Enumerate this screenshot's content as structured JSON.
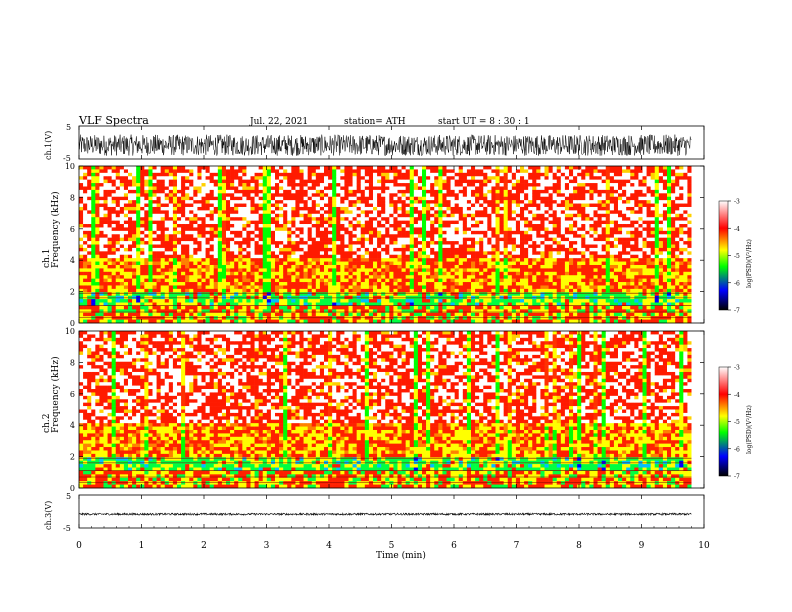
{
  "header": {
    "title": "VLF  Spectra",
    "date": "Jul.  22, 2021",
    "station": "station= ATH",
    "start": "start  UT  =    8  : 30 : 1"
  },
  "chart_data": [
    {
      "type": "line",
      "panel": "ch1-waveform",
      "ylabel": "ch.1(V)",
      "ylim": [
        -5,
        5
      ],
      "yticks": [
        "5",
        "-5"
      ],
      "xlim": [
        0,
        10
      ],
      "trace": {
        "mean": -0.8,
        "amplitude": 3.2,
        "color": "#000000"
      }
    },
    {
      "type": "heatmap",
      "panel": "ch1-spectrogram",
      "ylabel": "ch.1\nFrequency  (kHz)",
      "ylim": [
        0,
        10
      ],
      "yticks": [
        "0",
        "2",
        "4",
        "6",
        "8",
        "10"
      ],
      "xlim": [
        0,
        9.8
      ],
      "colorbar": {
        "label": "log(PSD)(V²/Hz)",
        "range": [
          -7,
          -3
        ],
        "ticks": [
          "-3",
          "-4",
          "-5",
          "-6",
          "-7"
        ]
      },
      "bands_khz": {
        "green_band": [
          1,
          2
        ],
        "yellow_band": [
          2,
          4.2
        ],
        "red_upper": [
          4.2,
          10
        ]
      }
    },
    {
      "type": "heatmap",
      "panel": "ch2-spectrogram",
      "ylabel": "ch.2\nFrequency  (kHz)",
      "ylim": [
        0,
        10
      ],
      "yticks": [
        "0",
        "2",
        "4",
        "6",
        "8",
        "10"
      ],
      "xlim": [
        0,
        9.8
      ],
      "colorbar": {
        "label": "log(PSD)(V²/Hz)",
        "range": [
          -7,
          -3
        ],
        "ticks": [
          "-3",
          "-4",
          "-5",
          "-6",
          "-7"
        ]
      },
      "bands_khz": {
        "green_band": [
          1,
          2
        ],
        "yellow_band": [
          2,
          4.2
        ],
        "red_upper": [
          4.2,
          10
        ]
      }
    },
    {
      "type": "line",
      "panel": "ch3-waveform",
      "ylabel": "ch.3(V)",
      "ylim": [
        -5,
        5
      ],
      "yticks": [
        "5",
        "-5"
      ],
      "xlim": [
        0,
        10
      ],
      "trace": {
        "mean": -0.8,
        "amplitude": 0.3,
        "color": "#000000"
      }
    }
  ],
  "xaxis": {
    "label": "Time  (min)",
    "ticks": [
      "0",
      "1",
      "2",
      "3",
      "4",
      "5",
      "6",
      "7",
      "8",
      "9",
      "10"
    ]
  },
  "colors": {
    "cb_stops": [
      "#000000",
      "#0000ff",
      "#00ff00",
      "#ffff00",
      "#ff0000",
      "#ffffff"
    ]
  }
}
